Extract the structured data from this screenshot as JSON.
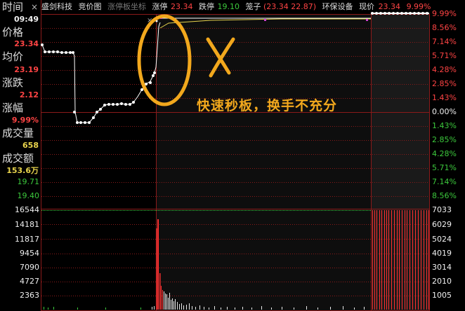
{
  "left_panel": {
    "time_label": "时间",
    "close_symbol": "×",
    "time_value": "09:49",
    "price_label": "价格",
    "price_value": "23.34",
    "avg_label": "均价",
    "avg_value": "23.19",
    "change_label": "涨跌",
    "change_value": "2.12",
    "pct_label": "涨幅",
    "pct_value": "9.99%",
    "vol_label": "成交量",
    "vol_value": "658",
    "amount_label": "成交额",
    "amount_value": "153.6万"
  },
  "header": {
    "stock_name": "盛剑科技",
    "auction": "竞价图",
    "limit_axis": "涨停板坐标",
    "limit_up_label": "涨停",
    "limit_up_value": "23.34",
    "limit_down_label": "跌停",
    "limit_down_value": "19.10",
    "cage_label": "笼子",
    "cage_values": "(23.34 22.87)",
    "sector": "环保设备",
    "now_label": "现价",
    "now_value": "23.34",
    "now_pct": "9.99%"
  },
  "price_axis_right": {
    "up": [
      "9.99%",
      "8.56%",
      "7.14%",
      "5.71%",
      "4.28%",
      "2.85%",
      "1.43%"
    ],
    "zero": "0.00%",
    "down": [
      "1.43%",
      "2.85%",
      "4.28%",
      "5.71%",
      "7.14%",
      "8.56%"
    ]
  },
  "price_axis_left": [
    "19.71",
    "19.40"
  ],
  "volume_axis_left": [
    "16544",
    "14181",
    "11817",
    "9454",
    "7090",
    "4727",
    "2363"
  ],
  "volume_axis_right": [
    "7033",
    "6029",
    "5024",
    "4019",
    "3014",
    "2010",
    "1005"
  ],
  "annotation": {
    "cross": "X",
    "text": "快速秒板，换手不充分"
  },
  "colors": {
    "up": "#ff4444",
    "down": "#3cc83c",
    "price_line": "#ffffff",
    "avg_line": "#e8d44d",
    "annotation": "#f2a81d",
    "grid": "#8b1a1a"
  }
}
